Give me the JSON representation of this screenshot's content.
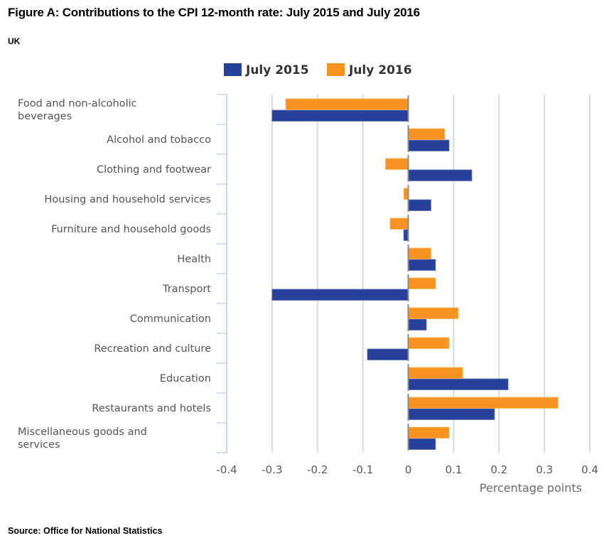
{
  "header": {
    "title": "Figure A: Contributions to the CPI 12-month rate: July 2015 and July 2016",
    "subtitle": "UK"
  },
  "footer": {
    "source": "Source: Office for National Statistics"
  },
  "colors": {
    "july_2015": "#27419A",
    "july_2016": "#F7931E",
    "gridline": "#d9d9d9",
    "axis": "#c8d6ea",
    "zero_line": "#8c8c8c"
  },
  "chart_data": {
    "type": "bar",
    "orientation": "horizontal",
    "title": "Figure A: Contributions to the CPI 12-month rate: July 2015 and July 2016",
    "subtitle": "UK",
    "xlabel": "Percentage points",
    "ylabel": "",
    "xlim": [
      -0.4,
      0.4
    ],
    "xticks": [
      -0.4,
      -0.3,
      -0.2,
      -0.1,
      0,
      0.1,
      0.2,
      0.3,
      0.4
    ],
    "xtick_labels": [
      "-0.4",
      "-0.3",
      "-0.2",
      "-0.1",
      "0",
      "0.1",
      "0.2",
      "0.3",
      "0.4"
    ],
    "grid": true,
    "legend_position": "top",
    "categories": [
      "Food and non-alcoholic beverages",
      "Alcohol and tobacco",
      "Clothing and footwear",
      "Housing and household services",
      "Furniture and household goods",
      "Health",
      "Transport",
      "Communication",
      "Recreation and culture",
      "Education",
      "Restaurants and hotels",
      "Miscellaneous goods and services"
    ],
    "category_label_lines": [
      [
        "Food and non-alcoholic",
        "beverages"
      ],
      [
        "Alcohol and tobacco"
      ],
      [
        "Clothing and footwear"
      ],
      [
        "Housing and household services"
      ],
      [
        "Furniture and household goods"
      ],
      [
        "Health"
      ],
      [
        "Transport"
      ],
      [
        "Communication"
      ],
      [
        "Recreation and culture"
      ],
      [
        "Education"
      ],
      [
        "Restaurants and hotels"
      ],
      [
        "Miscellaneous goods and",
        "services"
      ]
    ],
    "series": [
      {
        "name": "July 2015",
        "color": "#27419A",
        "values": [
          -0.3,
          0.09,
          0.14,
          0.05,
          -0.01,
          0.06,
          -0.3,
          0.04,
          -0.09,
          0.22,
          0.19,
          0.06
        ]
      },
      {
        "name": "July 2016",
        "color": "#F7931E",
        "values": [
          -0.27,
          0.08,
          -0.05,
          -0.01,
          -0.04,
          0.05,
          0.06,
          0.11,
          0.09,
          0.12,
          0.33,
          0.09
        ]
      }
    ]
  }
}
